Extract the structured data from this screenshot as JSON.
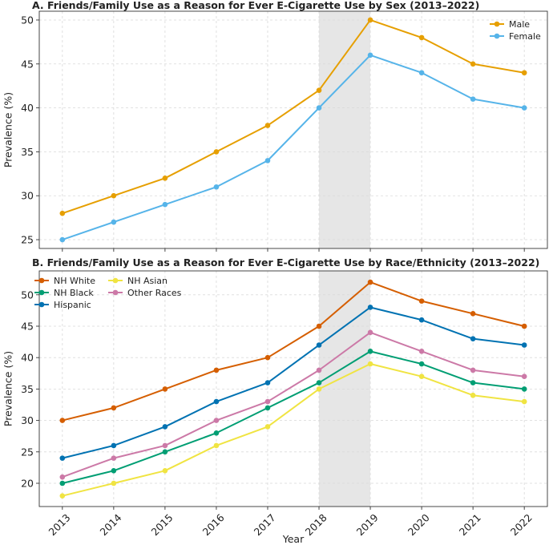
{
  "chart_data": [
    {
      "type": "line",
      "title": "A. Friends/Family Use as a Reason for Ever E-Cigarette Use by Sex (2013–2022)",
      "xlabel": "",
      "ylabel": "Prevalence (%)",
      "x": [
        2013,
        2014,
        2015,
        2016,
        2017,
        2018,
        2019,
        2020,
        2021,
        2022
      ],
      "ylim": [
        24,
        51
      ],
      "yticks": [
        25,
        30,
        35,
        40,
        45,
        50
      ],
      "highlight": [
        2018,
        2019
      ],
      "grid": true,
      "legend_position": "top-right",
      "series": [
        {
          "name": "Male",
          "color": "#E69F00",
          "values": [
            28,
            30,
            32,
            35,
            38,
            42,
            50,
            48,
            45,
            44
          ]
        },
        {
          "name": "Female",
          "color": "#56B4E9",
          "values": [
            25,
            27,
            29,
            31,
            34,
            40,
            46,
            44,
            41,
            40
          ]
        }
      ]
    },
    {
      "type": "line",
      "title": "B. Friends/Family Use as a Reason for Ever E-Cigarette Use by Race/Ethnicity (2013–2022)",
      "xlabel": "Year",
      "ylabel": "Prevalence (%)",
      "x": [
        2013,
        2014,
        2015,
        2016,
        2017,
        2018,
        2019,
        2020,
        2021,
        2022
      ],
      "ylim": [
        16.3,
        53.8
      ],
      "yticks": [
        20,
        25,
        30,
        35,
        40,
        45,
        50
      ],
      "highlight": [
        2018,
        2019
      ],
      "grid": true,
      "legend_position": "top-left",
      "series": [
        {
          "name": "NH White",
          "color": "#D55E00",
          "values": [
            30,
            32,
            35,
            38,
            40,
            45,
            52,
            49,
            47,
            45
          ]
        },
        {
          "name": "NH Black",
          "color": "#009E73",
          "values": [
            20,
            22,
            25,
            28,
            32,
            36,
            41,
            39,
            36,
            35
          ]
        },
        {
          "name": "Hispanic",
          "color": "#0072B2",
          "values": [
            24,
            26,
            29,
            33,
            36,
            42,
            48,
            46,
            43,
            42
          ]
        },
        {
          "name": "NH Asian",
          "color": "#F0E442",
          "values": [
            18,
            20,
            22,
            26,
            29,
            35,
            39,
            37,
            34,
            33
          ]
        },
        {
          "name": "Other Races",
          "color": "#CC79A7",
          "values": [
            21,
            24,
            26,
            30,
            33,
            38,
            44,
            41,
            38,
            37
          ]
        }
      ]
    }
  ]
}
